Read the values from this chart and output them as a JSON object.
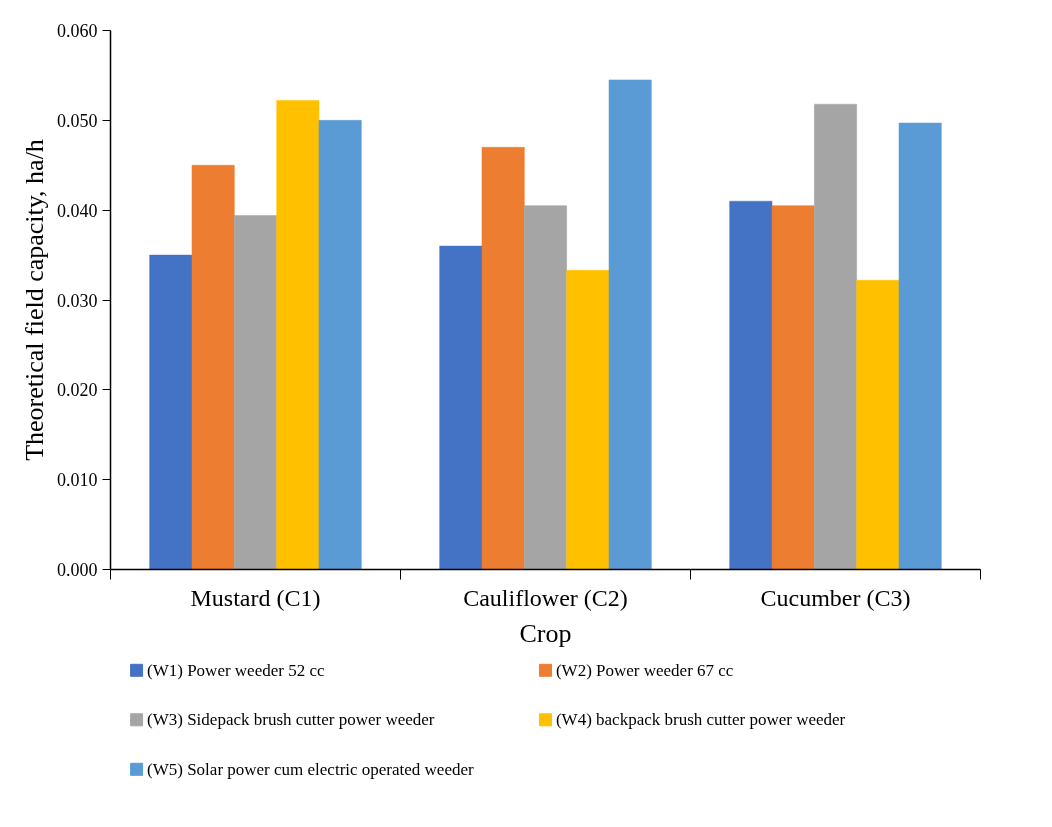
{
  "chart_data": {
    "type": "bar",
    "xlabel": "Crop",
    "ylabel": "Theoretical field capacity, ha/h",
    "categories": [
      "Mustard (C1)",
      "Cauliflower (C2)",
      "Cucumber (C3)"
    ],
    "series": [
      {
        "name": "(W1) Power weeder 52 cc",
        "color": "#4472c4",
        "values": [
          0.035,
          0.036,
          0.041
        ]
      },
      {
        "name": "(W2) Power weeder 67 cc",
        "color": "#ed7d31",
        "values": [
          0.045,
          0.047,
          0.0405
        ]
      },
      {
        "name": "(W3) Sidepack brush cutter power weeder",
        "color": "#a5a5a5",
        "values": [
          0.0394,
          0.0405,
          0.0518
        ]
      },
      {
        "name": "(W4) backpack brush cutter power weeder",
        "color": "#ffc000",
        "values": [
          0.0522,
          0.0333,
          0.0322
        ]
      },
      {
        "name": "(W5) Solar power cum electric operated weeder",
        "color": "#5b9bd5",
        "values": [
          0.05,
          0.0545,
          0.0497
        ]
      }
    ],
    "ylim": [
      0,
      0.06
    ],
    "yticks": [
      {
        "value": 0,
        "label": "0.000"
      },
      {
        "value": 0.01,
        "label": "0.010"
      },
      {
        "value": 0.02,
        "label": "0.020"
      },
      {
        "value": 0.03,
        "label": "0.030"
      },
      {
        "value": 0.04,
        "label": "0.040"
      },
      {
        "value": 0.05,
        "label": "0.050"
      },
      {
        "value": 0.06,
        "label": "0.060"
      }
    ],
    "grid": false,
    "legend": "bottom"
  }
}
